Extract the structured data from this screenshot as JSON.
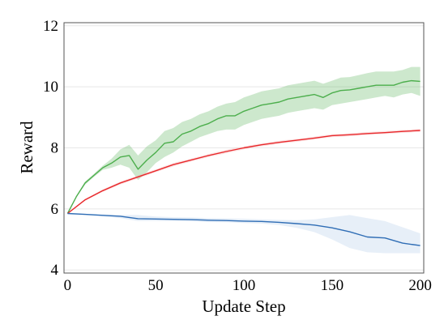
{
  "chart_data": {
    "type": "line",
    "title": "",
    "xlabel": "Update Step",
    "ylabel": "Reward",
    "xlim": [
      -2,
      202
    ],
    "ylim": [
      3.9,
      12.1
    ],
    "xticks": [
      0,
      50,
      100,
      150,
      200
    ],
    "yticks": [
      4,
      6,
      8,
      10,
      12
    ],
    "grid": "horizontal",
    "legend": "none",
    "series": [
      {
        "color": "#4cae4c",
        "band_color": "#4cae4c",
        "x": [
          0,
          5,
          10,
          15,
          20,
          25,
          30,
          35,
          40,
          45,
          50,
          55,
          60,
          65,
          70,
          75,
          80,
          85,
          90,
          95,
          100,
          105,
          110,
          115,
          120,
          125,
          130,
          135,
          140,
          145,
          150,
          155,
          160,
          165,
          170,
          175,
          180,
          185,
          190,
          195,
          200
        ],
        "y": [
          5.85,
          6.4,
          6.85,
          7.1,
          7.35,
          7.5,
          7.7,
          7.75,
          7.3,
          7.6,
          7.85,
          8.15,
          8.2,
          8.45,
          8.55,
          8.7,
          8.8,
          8.95,
          9.05,
          9.05,
          9.2,
          9.3,
          9.4,
          9.45,
          9.5,
          9.6,
          9.65,
          9.7,
          9.75,
          9.65,
          9.8,
          9.88,
          9.9,
          9.95,
          10.0,
          10.05,
          10.05,
          10.05,
          10.15,
          10.2,
          10.18
        ],
        "lower": [
          5.85,
          6.38,
          6.8,
          7.05,
          7.28,
          7.35,
          7.45,
          7.35,
          6.95,
          7.2,
          7.5,
          7.7,
          7.85,
          8.05,
          8.2,
          8.35,
          8.45,
          8.55,
          8.6,
          8.6,
          8.75,
          8.85,
          8.95,
          9.0,
          9.05,
          9.15,
          9.2,
          9.25,
          9.3,
          9.25,
          9.4,
          9.45,
          9.5,
          9.55,
          9.6,
          9.65,
          9.7,
          9.65,
          9.75,
          9.8,
          9.7
        ],
        "upper": [
          5.85,
          6.42,
          6.9,
          7.15,
          7.42,
          7.65,
          7.95,
          8.1,
          7.75,
          8.05,
          8.25,
          8.55,
          8.65,
          8.85,
          8.95,
          9.1,
          9.2,
          9.35,
          9.45,
          9.5,
          9.65,
          9.75,
          9.85,
          9.9,
          9.95,
          10.05,
          10.1,
          10.15,
          10.2,
          10.1,
          10.2,
          10.3,
          10.32,
          10.38,
          10.45,
          10.5,
          10.5,
          10.5,
          10.55,
          10.65,
          10.65
        ]
      },
      {
        "color": "#e8272a",
        "band_color": "#f3a0a0",
        "x": [
          0,
          10,
          20,
          30,
          40,
          50,
          60,
          70,
          80,
          90,
          100,
          110,
          120,
          130,
          140,
          150,
          160,
          170,
          180,
          190,
          200
        ],
        "y": [
          5.85,
          6.3,
          6.6,
          6.85,
          7.05,
          7.25,
          7.45,
          7.6,
          7.75,
          7.88,
          8.0,
          8.1,
          8.18,
          8.25,
          8.32,
          8.4,
          8.43,
          8.47,
          8.5,
          8.54,
          8.57
        ],
        "lower": [
          5.85,
          6.27,
          6.56,
          6.8,
          7.0,
          7.2,
          7.39,
          7.55,
          7.7,
          7.82,
          7.95,
          8.05,
          8.13,
          8.2,
          8.27,
          8.35,
          8.38,
          8.42,
          8.45,
          8.49,
          8.52
        ],
        "upper": [
          5.85,
          6.33,
          6.64,
          6.9,
          7.1,
          7.3,
          7.51,
          7.65,
          7.8,
          7.94,
          8.05,
          8.15,
          8.23,
          8.3,
          8.37,
          8.45,
          8.48,
          8.52,
          8.55,
          8.59,
          8.62
        ]
      },
      {
        "color": "#2f6db5",
        "band_color": "#a9c4e6",
        "x": [
          0,
          10,
          20,
          30,
          40,
          50,
          60,
          70,
          80,
          90,
          100,
          110,
          120,
          130,
          140,
          150,
          160,
          170,
          180,
          190,
          200
        ],
        "y": [
          5.85,
          5.82,
          5.79,
          5.76,
          5.68,
          5.67,
          5.66,
          5.65,
          5.63,
          5.62,
          5.6,
          5.59,
          5.56,
          5.52,
          5.47,
          5.38,
          5.25,
          5.08,
          5.05,
          4.88,
          4.8
        ],
        "lower": [
          5.85,
          5.8,
          5.76,
          5.7,
          5.6,
          5.6,
          5.6,
          5.59,
          5.57,
          5.56,
          5.54,
          5.52,
          5.47,
          5.38,
          5.24,
          5.0,
          4.72,
          4.58,
          4.55,
          4.55,
          4.55
        ],
        "upper": [
          5.85,
          5.84,
          5.82,
          5.8,
          5.8,
          5.75,
          5.73,
          5.72,
          5.7,
          5.69,
          5.68,
          5.66,
          5.64,
          5.63,
          5.66,
          5.73,
          5.8,
          5.7,
          5.6,
          5.4,
          5.2
        ]
      }
    ]
  }
}
